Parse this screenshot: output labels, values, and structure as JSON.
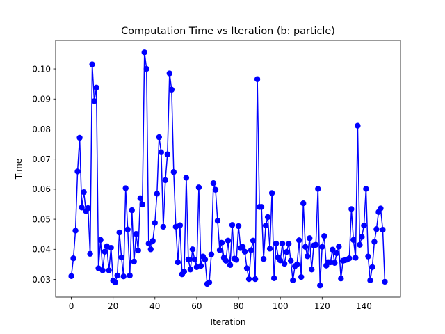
{
  "chart_data": {
    "type": "line",
    "title": "Computation Time vs Iteration (b: particle)",
    "xlabel": "Iteration",
    "ylabel": "Time",
    "xlim": [
      -7.5,
      157.5
    ],
    "ylim": [
      0.0241,
      0.1095
    ],
    "xticks": [
      0,
      20,
      40,
      60,
      80,
      100,
      120,
      140
    ],
    "xtick_labels": [
      "0",
      "20",
      "40",
      "60",
      "80",
      "100",
      "120",
      "140"
    ],
    "yticks": [
      0.03,
      0.04,
      0.05,
      0.06,
      0.07,
      0.08,
      0.09,
      0.1
    ],
    "ytick_labels": [
      "0.03",
      "0.04",
      "0.05",
      "0.06",
      "0.07",
      "0.08",
      "0.09",
      "0.10"
    ],
    "grid": false,
    "legend": false,
    "series": [
      {
        "name": "b: particle",
        "color": "#0000ff",
        "marker": "circle",
        "x": [
          0,
          1,
          2,
          3,
          4,
          5,
          6,
          7,
          8,
          9,
          10,
          11,
          12,
          13,
          14,
          15,
          16,
          17,
          18,
          19,
          20,
          21,
          22,
          23,
          24,
          25,
          26,
          27,
          28,
          29,
          30,
          31,
          32,
          33,
          34,
          35,
          36,
          37,
          38,
          39,
          40,
          41,
          42,
          43,
          44,
          45,
          46,
          47,
          48,
          49,
          50,
          51,
          52,
          53,
          54,
          55,
          56,
          57,
          58,
          59,
          60,
          61,
          62,
          63,
          64,
          65,
          66,
          67,
          68,
          69,
          70,
          71,
          72,
          73,
          74,
          75,
          76,
          77,
          78,
          79,
          80,
          81,
          82,
          83,
          84,
          85,
          86,
          87,
          88,
          89,
          90,
          91,
          92,
          93,
          94,
          95,
          96,
          97,
          98,
          99,
          100,
          101,
          102,
          103,
          104,
          105,
          106,
          107,
          108,
          109,
          110,
          111,
          112,
          113,
          114,
          115,
          116,
          117,
          118,
          119,
          120,
          121,
          122,
          123,
          124,
          125,
          126,
          127,
          128,
          129,
          130,
          131,
          132,
          133,
          134,
          135,
          136,
          137,
          138,
          139,
          140,
          141,
          142,
          143,
          144,
          145,
          146,
          147,
          148,
          149,
          150
        ],
        "values": [
          0.0311,
          0.037,
          0.0462,
          0.0659,
          0.0771,
          0.0539,
          0.059,
          0.0527,
          0.0537,
          0.0385,
          0.1015,
          0.0893,
          0.0938,
          0.0337,
          0.0431,
          0.033,
          0.0392,
          0.041,
          0.033,
          0.0405,
          0.0296,
          0.029,
          0.0313,
          0.0456,
          0.0373,
          0.031,
          0.0603,
          0.0466,
          0.0313,
          0.053,
          0.0359,
          0.0451,
          0.0396,
          0.057,
          0.0549,
          0.1055,
          0.1,
          0.0419,
          0.04,
          0.0428,
          0.0488,
          0.0585,
          0.0773,
          0.0723,
          0.0475,
          0.063,
          0.0716,
          0.0985,
          0.0931,
          0.0657,
          0.0475,
          0.0357,
          0.048,
          0.0317,
          0.0326,
          0.0638,
          0.0366,
          0.0333,
          0.04,
          0.0366,
          0.0341,
          0.0606,
          0.0345,
          0.0376,
          0.0366,
          0.0285,
          0.029,
          0.0383,
          0.062,
          0.0598,
          0.0495,
          0.0397,
          0.0422,
          0.0372,
          0.0362,
          0.0429,
          0.0348,
          0.0481,
          0.0369,
          0.0365,
          0.0477,
          0.0404,
          0.0408,
          0.0392,
          0.0337,
          0.0301,
          0.0397,
          0.0429,
          0.0301,
          0.0966,
          0.0541,
          0.0541,
          0.0368,
          0.0479,
          0.0507,
          0.0402,
          0.0587,
          0.0304,
          0.0419,
          0.0373,
          0.0363,
          0.0419,
          0.0352,
          0.0391,
          0.0418,
          0.0362,
          0.0297,
          0.0344,
          0.035,
          0.043,
          0.0308,
          0.0553,
          0.0408,
          0.0377,
          0.0437,
          0.0333,
          0.0413,
          0.0415,
          0.0601,
          0.028,
          0.0408,
          0.0444,
          0.0346,
          0.0357,
          0.0357,
          0.0399,
          0.0355,
          0.0387,
          0.0409,
          0.0303,
          0.0362,
          0.0364,
          0.0366,
          0.037,
          0.0534,
          0.0431,
          0.0372,
          0.0811,
          0.0415,
          0.0441,
          0.0479,
          0.0601,
          0.0376,
          0.0297,
          0.0341,
          0.0425,
          0.0467,
          0.0524,
          0.0536,
          0.0465,
          0.0292
        ]
      }
    ]
  }
}
